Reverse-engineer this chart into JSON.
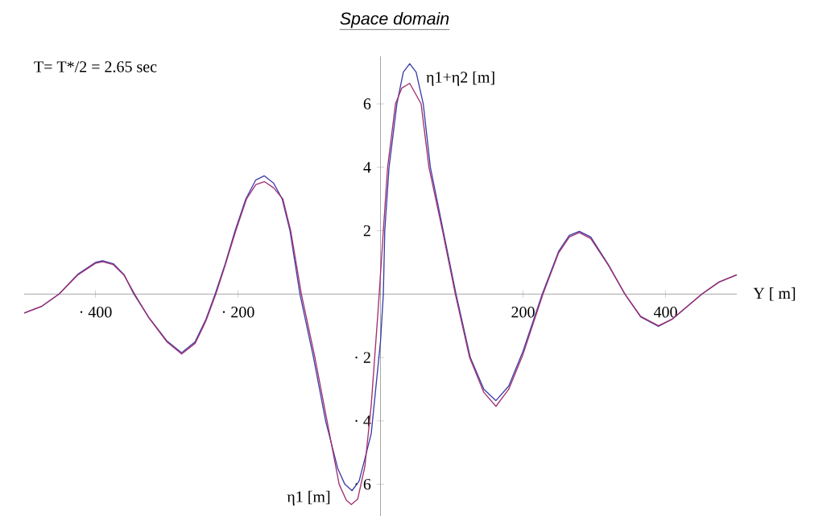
{
  "chart_data": {
    "type": "line",
    "title": "Space domain",
    "xlabel": "Y [ m]",
    "annotations": [
      "T= T*/2 = 2.65 sec"
    ],
    "xlim": [
      -500,
      500
    ],
    "ylim": [
      -7,
      7.5
    ],
    "xticks": [
      {
        "value": -400,
        "label": "· 400"
      },
      {
        "value": -200,
        "label": "· 200"
      },
      200,
      400
    ],
    "yticks": [
      {
        "value": -6,
        "label": "· 6"
      },
      {
        "value": -4,
        "label": "· 4"
      },
      {
        "value": -2,
        "label": "· 2"
      },
      2,
      4,
      6
    ],
    "series": [
      {
        "name": "η1+η2 [m]",
        "color": "#3c3ca8",
        "x": [
          -500,
          -475,
          -451,
          -425,
          -400,
          -390,
          -375,
          -360,
          -346,
          -325,
          -300,
          -279,
          -260,
          -245,
          -232,
          -218,
          -204,
          -189,
          -175,
          -163,
          -150,
          -138,
          -127,
          -113,
          -94,
          -77,
          -60,
          -50,
          -40,
          -30,
          -22,
          -13,
          0,
          4,
          6,
          12,
          23,
          32,
          41,
          50,
          60,
          70,
          88,
          106,
          126,
          145,
          162,
          180,
          200,
          227,
          250,
          265,
          279,
          295,
          320,
          343,
          365,
          390,
          410,
          430,
          451,
          475,
          500
        ],
        "values": [
          -0.6,
          -0.38,
          0,
          0.62,
          1.0,
          1.05,
          0.96,
          0.62,
          0,
          -0.74,
          -1.47,
          -1.85,
          -1.5,
          -0.8,
          0,
          0.95,
          2.0,
          3.0,
          3.6,
          3.73,
          3.5,
          3.0,
          2.0,
          0,
          -2.0,
          -4.0,
          -5.5,
          -6.0,
          -6.2,
          -5.9,
          -5.2,
          -4.4,
          -1.5,
          0,
          2.0,
          4.0,
          6.0,
          7.0,
          7.27,
          7.0,
          6.0,
          4.0,
          2.0,
          0,
          -2.0,
          -3.0,
          -3.36,
          -2.9,
          -1.8,
          0,
          1.35,
          1.85,
          1.98,
          1.8,
          0.92,
          0,
          -0.72,
          -1.02,
          -0.78,
          -0.4,
          0,
          0.38,
          0.61
        ]
      },
      {
        "name": "η1 [m]",
        "color": "#a03070",
        "x": [
          -500,
          -475,
          -451,
          -425,
          -400,
          -390,
          -375,
          -360,
          -345,
          -325,
          -300,
          -279,
          -260,
          -245,
          -231,
          -218,
          -203,
          -188,
          -175,
          -163,
          -150,
          -137,
          -126,
          -111,
          -92,
          -75,
          -58,
          -48,
          -41,
          -32,
          -22,
          -13,
          -3,
          4,
          10,
          21,
          30,
          41,
          57,
          68,
          87,
          105,
          125,
          145,
          162,
          180,
          200,
          228,
          250,
          265,
          279,
          295,
          320,
          343,
          365,
          390,
          410,
          430,
          451,
          475,
          500
        ],
        "values": [
          -0.6,
          -0.38,
          0,
          0.6,
          0.97,
          1.02,
          0.93,
          0.6,
          0,
          -0.75,
          -1.5,
          -1.89,
          -1.55,
          -0.85,
          0,
          0.9,
          2.0,
          3.0,
          3.45,
          3.55,
          3.35,
          3.0,
          2.0,
          0,
          -2.0,
          -4.0,
          -6.0,
          -6.5,
          -6.64,
          -6.47,
          -5.45,
          -3.5,
          -0.4,
          2.0,
          4.0,
          6.0,
          6.5,
          6.65,
          6.0,
          4.0,
          2.0,
          0,
          -2.0,
          -3.1,
          -3.54,
          -3.0,
          -1.9,
          0,
          1.3,
          1.8,
          1.94,
          1.75,
          0.9,
          0,
          -0.7,
          -1.0,
          -0.78,
          -0.4,
          0,
          0.38,
          0.61
        ]
      }
    ]
  }
}
